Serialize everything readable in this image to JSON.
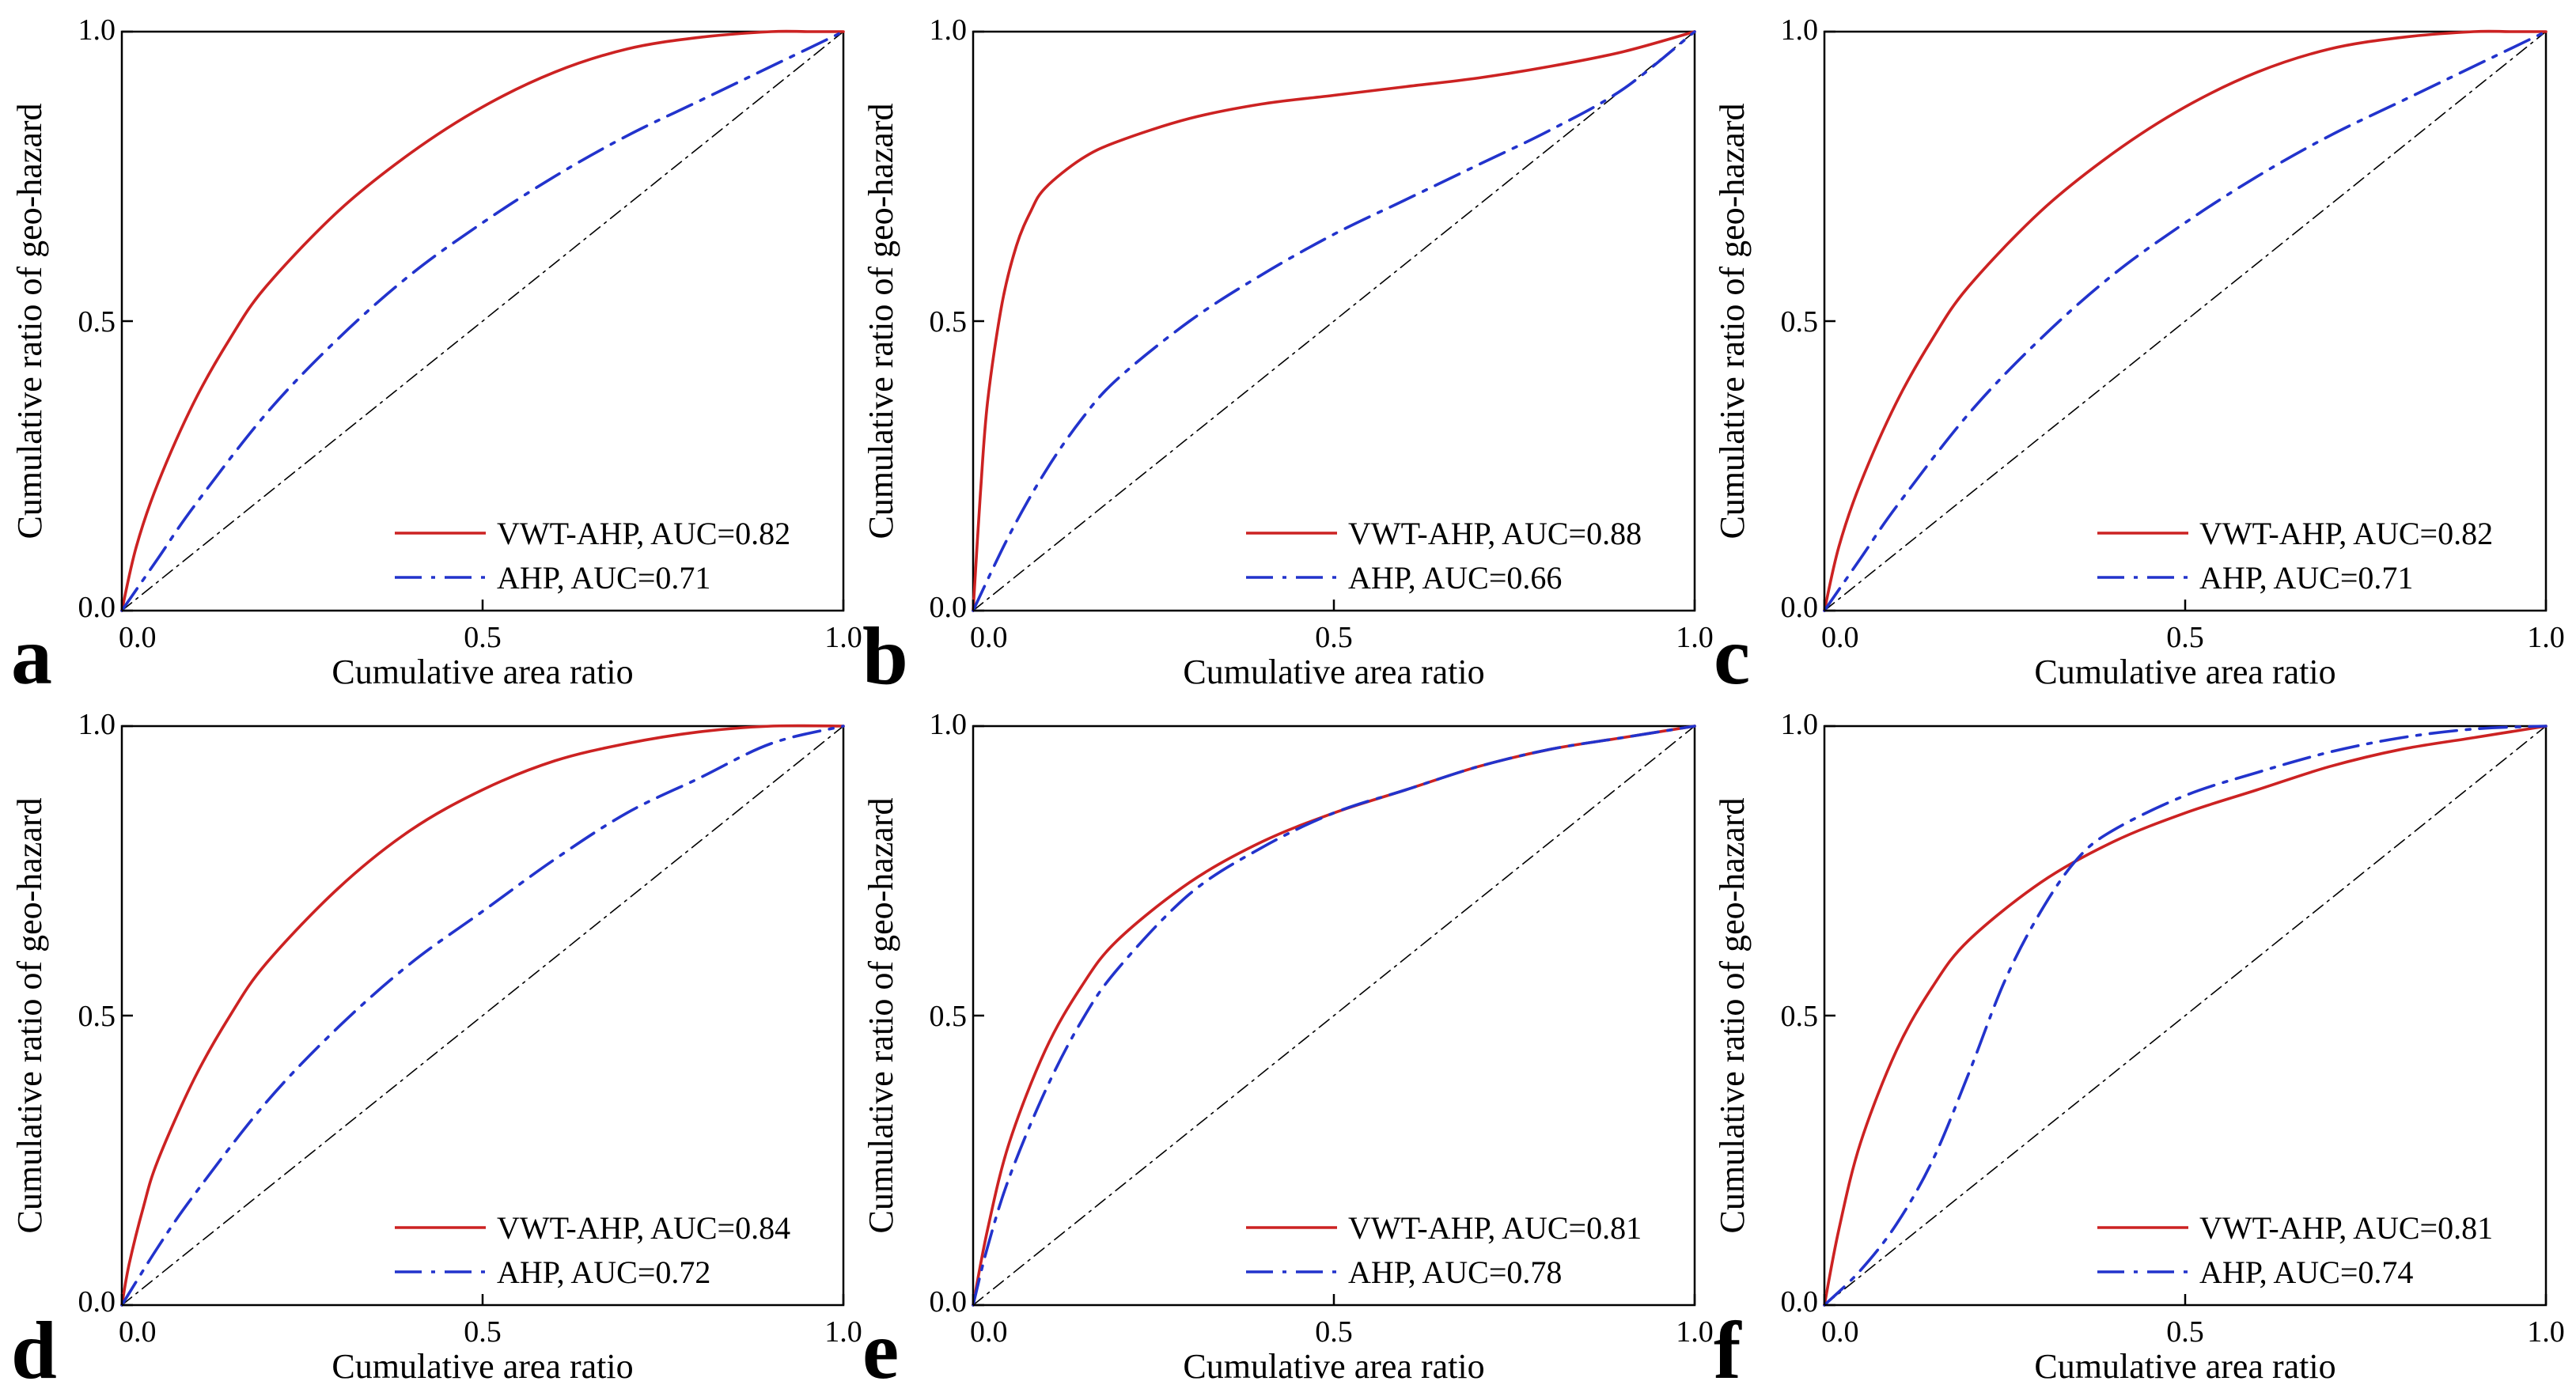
{
  "chart_data": [
    {
      "type": "line",
      "panel_label": "a",
      "xlabel": "Cumulative area ratio",
      "ylabel": "Cumulative ratio of geo-hazard",
      "xlim": [
        0,
        1
      ],
      "ylim": [
        0,
        1
      ],
      "xticks": [
        "0.0",
        "0.5",
        "1.0"
      ],
      "yticks": [
        "0.0",
        "0.5",
        "1.0"
      ],
      "legend_position": "bottom-right",
      "series": [
        {
          "name": "VWT-AHP, AUC=0.82",
          "color": "#cc2222",
          "style": "solid",
          "x": [
            0,
            0.02,
            0.05,
            0.1,
            0.15,
            0.2,
            0.3,
            0.4,
            0.5,
            0.6,
            0.7,
            0.8,
            0.9,
            0.95,
            1.0
          ],
          "y": [
            0,
            0.11,
            0.22,
            0.36,
            0.47,
            0.56,
            0.69,
            0.79,
            0.87,
            0.93,
            0.97,
            0.99,
            1.0,
            1.0,
            1.0
          ]
        },
        {
          "name": "AHP, AUC=0.71",
          "color": "#2233cc",
          "style": "dashdot",
          "x": [
            0,
            0.05,
            0.1,
            0.2,
            0.3,
            0.4,
            0.5,
            0.6,
            0.7,
            0.8,
            0.9,
            1.0
          ],
          "y": [
            0,
            0.09,
            0.18,
            0.34,
            0.47,
            0.58,
            0.67,
            0.75,
            0.82,
            0.88,
            0.94,
            1.0
          ]
        },
        {
          "name": "reference",
          "color": "#000000",
          "style": "reference",
          "x": [
            0,
            1
          ],
          "y": [
            0,
            1
          ]
        }
      ]
    },
    {
      "type": "line",
      "panel_label": "b",
      "xlabel": "Cumulative area ratio",
      "ylabel": "Cumulative ratio of geo-hazard",
      "xlim": [
        0,
        1
      ],
      "ylim": [
        0,
        1
      ],
      "xticks": [
        "0.0",
        "0.5",
        "1.0"
      ],
      "yticks": [
        "0.0",
        "0.5",
        "1.0"
      ],
      "legend_position": "bottom-right",
      "series": [
        {
          "name": "VWT-AHP, AUC=0.88",
          "color": "#cc2222",
          "style": "solid",
          "x": [
            0,
            0.01,
            0.02,
            0.04,
            0.06,
            0.08,
            0.1,
            0.15,
            0.2,
            0.3,
            0.4,
            0.5,
            0.6,
            0.7,
            0.8,
            0.9,
            1.0
          ],
          "y": [
            0,
            0.2,
            0.36,
            0.53,
            0.63,
            0.69,
            0.73,
            0.78,
            0.81,
            0.85,
            0.875,
            0.89,
            0.905,
            0.92,
            0.94,
            0.965,
            1.0
          ]
        },
        {
          "name": "AHP, AUC=0.66",
          "color": "#2233cc",
          "style": "dashdot",
          "x": [
            0,
            0.05,
            0.1,
            0.15,
            0.2,
            0.3,
            0.4,
            0.5,
            0.6,
            0.7,
            0.8,
            0.9,
            1.0
          ],
          "y": [
            0,
            0.13,
            0.24,
            0.33,
            0.4,
            0.5,
            0.58,
            0.65,
            0.71,
            0.77,
            0.83,
            0.9,
            1.0
          ]
        },
        {
          "name": "reference",
          "color": "#000000",
          "style": "reference",
          "x": [
            0,
            1
          ],
          "y": [
            0,
            1
          ]
        }
      ]
    },
    {
      "type": "line",
      "panel_label": "c",
      "xlabel": "Cumulative area ratio",
      "ylabel": "Cumulative ratio of geo-hazard",
      "xlim": [
        0,
        1
      ],
      "ylim": [
        0,
        1
      ],
      "xticks": [
        "0.0",
        "0.5",
        "1.0"
      ],
      "yticks": [
        "0.0",
        "0.5",
        "1.0"
      ],
      "legend_position": "bottom-right",
      "series": [
        {
          "name": "VWT-AHP, AUC=0.82",
          "color": "#cc2222",
          "style": "solid",
          "x": [
            0,
            0.02,
            0.05,
            0.1,
            0.15,
            0.2,
            0.3,
            0.4,
            0.5,
            0.6,
            0.7,
            0.8,
            0.9,
            0.95,
            1.0
          ],
          "y": [
            0,
            0.11,
            0.22,
            0.36,
            0.47,
            0.56,
            0.69,
            0.79,
            0.87,
            0.93,
            0.97,
            0.99,
            1.0,
            1.0,
            1.0
          ]
        },
        {
          "name": "AHP, AUC=0.71",
          "color": "#2233cc",
          "style": "dashdot",
          "x": [
            0,
            0.05,
            0.1,
            0.2,
            0.3,
            0.4,
            0.5,
            0.6,
            0.7,
            0.8,
            0.9,
            1.0
          ],
          "y": [
            0,
            0.09,
            0.18,
            0.34,
            0.47,
            0.58,
            0.67,
            0.75,
            0.82,
            0.88,
            0.94,
            1.0
          ]
        },
        {
          "name": "reference",
          "color": "#000000",
          "style": "reference",
          "x": [
            0,
            1
          ],
          "y": [
            0,
            1
          ]
        }
      ]
    },
    {
      "type": "line",
      "panel_label": "d",
      "xlabel": "Cumulative area ratio",
      "ylabel": "Cumulative ratio of geo-hazard",
      "xlim": [
        0,
        1
      ],
      "ylim": [
        0,
        1
      ],
      "xticks": [
        "0.0",
        "0.5",
        "1.0"
      ],
      "yticks": [
        "0.0",
        "0.5",
        "1.0"
      ],
      "legend_position": "bottom-right",
      "series": [
        {
          "name": "VWT-AHP, AUC=0.84",
          "color": "#cc2222",
          "style": "solid",
          "x": [
            0,
            0.01,
            0.03,
            0.05,
            0.1,
            0.15,
            0.2,
            0.3,
            0.4,
            0.5,
            0.6,
            0.7,
            0.8,
            0.9,
            1.0
          ],
          "y": [
            0,
            0.07,
            0.17,
            0.25,
            0.39,
            0.5,
            0.59,
            0.72,
            0.82,
            0.89,
            0.94,
            0.97,
            0.99,
            1.0,
            1.0
          ]
        },
        {
          "name": "AHP, AUC=0.72",
          "color": "#2233cc",
          "style": "dashdot",
          "x": [
            0,
            0.05,
            0.1,
            0.2,
            0.3,
            0.4,
            0.5,
            0.6,
            0.7,
            0.8,
            0.9,
            1.0
          ],
          "y": [
            0,
            0.1,
            0.19,
            0.35,
            0.48,
            0.59,
            0.68,
            0.77,
            0.85,
            0.91,
            0.97,
            1.0
          ]
        },
        {
          "name": "reference",
          "color": "#000000",
          "style": "reference",
          "x": [
            0,
            1
          ],
          "y": [
            0,
            1
          ]
        }
      ]
    },
    {
      "type": "line",
      "panel_label": "e",
      "xlabel": "Cumulative area ratio",
      "ylabel": "Cumulative ratio of geo-hazard",
      "xlim": [
        0,
        1
      ],
      "ylim": [
        0,
        1
      ],
      "xticks": [
        "0.0",
        "0.5",
        "1.0"
      ],
      "yticks": [
        "0.0",
        "0.5",
        "1.0"
      ],
      "legend_position": "bottom-right",
      "series": [
        {
          "name": "VWT-AHP, AUC=0.81",
          "color": "#cc2222",
          "style": "solid",
          "x": [
            0,
            0.02,
            0.05,
            0.1,
            0.15,
            0.2,
            0.3,
            0.4,
            0.5,
            0.6,
            0.7,
            0.8,
            0.9,
            1.0
          ],
          "y": [
            0,
            0.13,
            0.28,
            0.44,
            0.55,
            0.63,
            0.73,
            0.8,
            0.85,
            0.89,
            0.93,
            0.96,
            0.98,
            1.0
          ]
        },
        {
          "name": "AHP, AUC=0.78",
          "color": "#2233cc",
          "style": "dashdot",
          "x": [
            0,
            0.02,
            0.05,
            0.1,
            0.15,
            0.2,
            0.3,
            0.4,
            0.5,
            0.6,
            0.7,
            0.8,
            0.9,
            1.0
          ],
          "y": [
            0,
            0.1,
            0.22,
            0.37,
            0.49,
            0.58,
            0.71,
            0.79,
            0.85,
            0.89,
            0.93,
            0.96,
            0.98,
            1.0
          ]
        },
        {
          "name": "reference",
          "color": "#000000",
          "style": "reference",
          "x": [
            0,
            1
          ],
          "y": [
            0,
            1
          ]
        }
      ]
    },
    {
      "type": "line",
      "panel_label": "f",
      "xlabel": "Cumulative area ratio",
      "ylabel": "Cumulative ratio of geo-hazard",
      "xlim": [
        0,
        1
      ],
      "ylim": [
        0,
        1
      ],
      "xticks": [
        "0.0",
        "0.5",
        "1.0"
      ],
      "yticks": [
        "0.0",
        "0.5",
        "1.0"
      ],
      "legend_position": "bottom-right",
      "series": [
        {
          "name": "VWT-AHP, AUC=0.81",
          "color": "#cc2222",
          "style": "solid",
          "x": [
            0,
            0.02,
            0.05,
            0.1,
            0.15,
            0.2,
            0.3,
            0.4,
            0.5,
            0.6,
            0.7,
            0.8,
            0.9,
            1.0
          ],
          "y": [
            0,
            0.13,
            0.28,
            0.44,
            0.55,
            0.63,
            0.73,
            0.8,
            0.85,
            0.89,
            0.93,
            0.96,
            0.98,
            1.0
          ]
        },
        {
          "name": "AHP, AUC=0.74",
          "color": "#2233cc",
          "style": "dashdot",
          "x": [
            0,
            0.05,
            0.1,
            0.15,
            0.2,
            0.25,
            0.3,
            0.35,
            0.4,
            0.5,
            0.6,
            0.7,
            0.8,
            0.9,
            1.0
          ],
          "y": [
            0,
            0.06,
            0.14,
            0.25,
            0.4,
            0.56,
            0.68,
            0.77,
            0.82,
            0.88,
            0.92,
            0.955,
            0.98,
            0.995,
            1.0
          ]
        },
        {
          "name": "reference",
          "color": "#000000",
          "style": "reference",
          "x": [
            0,
            1
          ],
          "y": [
            0,
            1
          ]
        }
      ]
    }
  ]
}
